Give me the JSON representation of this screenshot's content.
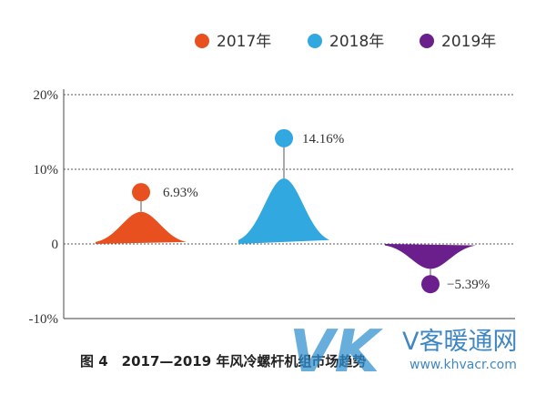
{
  "chart_data": {
    "type": "area",
    "categories": [
      "2017年",
      "2018年",
      "2019年"
    ],
    "values": [
      6.93,
      14.16,
      -5.39
    ],
    "value_labels": [
      "6.93%",
      "14.16%",
      "−5.39%"
    ],
    "ylim": [
      -10,
      20
    ],
    "yticks": [
      {
        "value": 20,
        "label": "20%"
      },
      {
        "value": 10,
        "label": "10%"
      },
      {
        "value": 0,
        "label": "0"
      },
      {
        "value": -10,
        "label": "-10%"
      }
    ],
    "grid": true,
    "legend": "top-right",
    "colors": [
      "#e8501f",
      "#32a8e0",
      "#6a1f8c"
    ],
    "title": "",
    "xlabel": "",
    "ylabel": ""
  },
  "caption": "图 4　2017—2019 年风冷螺杆机组市场趋势",
  "watermark": {
    "letters": "VK",
    "site_name": "V客暖通网",
    "url": "www.khvacr.com"
  }
}
